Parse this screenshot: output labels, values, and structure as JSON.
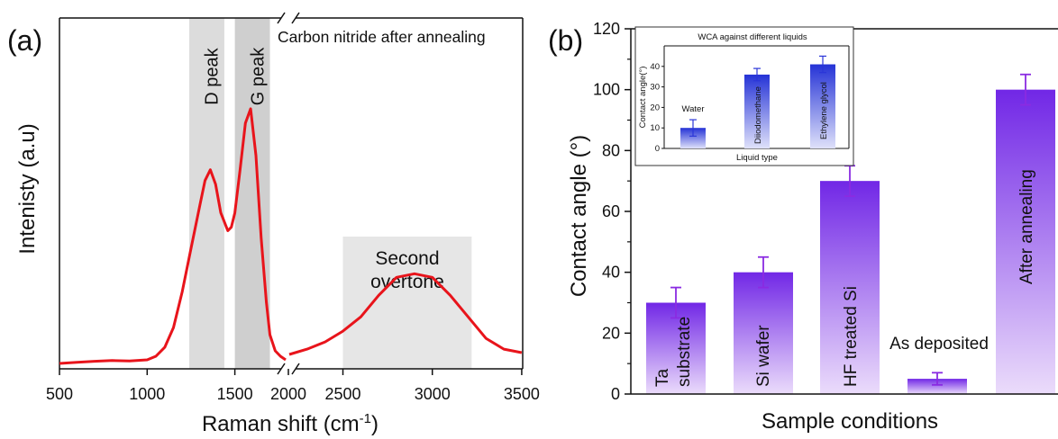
{
  "chart_data": [
    {
      "panel": "(a)",
      "type": "line",
      "title": "",
      "xlabel": "Raman shift (cm",
      "xlabel_sup": "-1",
      "xlabel_end": ")",
      "ylabel": "Intenisty (a.u)",
      "annotation": "Carbon nitride after annealing",
      "xlim": [
        500,
        3500
      ],
      "x_break": [
        1800,
        2200
      ],
      "xticks": [
        "500",
        "1000",
        "1500",
        "2000",
        "2500",
        "3000",
        "3500"
      ],
      "xtick_values": [
        500,
        1000,
        1500,
        2000,
        2500,
        3000,
        3500
      ],
      "regions": [
        {
          "label": "D peak",
          "from": 1240,
          "to": 1440
        },
        {
          "label": "G peak",
          "from": 1500,
          "to": 1700
        },
        {
          "label": "Second overtone",
          "from": 2500,
          "to": 3220
        }
      ],
      "series": [
        {
          "color": "#e8141b",
          "x": [
            500,
            600,
            700,
            800,
            900,
            1000,
            1050,
            1100,
            1150,
            1200,
            1250,
            1300,
            1330,
            1360,
            1390,
            1420,
            1460,
            1480,
            1500,
            1530,
            1560,
            1590,
            1620,
            1650,
            1680,
            1700,
            1730,
            1760,
            1790,
            2200,
            2300,
            2400,
            2500,
            2600,
            2700,
            2800,
            2900,
            3000,
            3100,
            3200,
            3300,
            3400,
            3500
          ],
          "y": [
            0,
            0.3,
            0.6,
            0.8,
            0.7,
            1.0,
            2.0,
            4.5,
            10,
            20,
            32,
            44,
            51,
            54,
            50,
            42,
            37,
            38,
            42,
            54,
            67,
            71,
            58,
            35,
            17,
            8,
            3.5,
            2,
            1,
            2.5,
            4,
            6,
            9,
            13,
            19,
            24,
            25,
            24,
            19,
            13,
            7,
            4,
            3
          ]
        }
      ]
    },
    {
      "panel": "(b)",
      "type": "bar",
      "title": "",
      "xlabel": "Sample conditions",
      "ylabel": "Contact angle (°)",
      "ylim": [
        0,
        120
      ],
      "yticks": [
        "0",
        "20",
        "40",
        "60",
        "80",
        "100",
        "120"
      ],
      "ytick_values": [
        0,
        20,
        40,
        60,
        80,
        100,
        120
      ],
      "categories": [
        "Ta substrate",
        "Si wafer",
        "HF treated Si",
        "As deposited",
        "After annealing"
      ],
      "bar_text": [
        [
          "Ta",
          "substrate"
        ],
        [
          "Si wafer"
        ],
        [
          "HF treated Si"
        ],
        [
          "As deposited"
        ],
        [
          "After annealing"
        ]
      ],
      "values": [
        30,
        40,
        70,
        5,
        100
      ],
      "errors": [
        5,
        5,
        5,
        2,
        5
      ],
      "bar_color": "#7a2fe8"
    },
    {
      "panel": "inset",
      "type": "bar",
      "title": "WCA against different liquids",
      "xlabel": "Liquid type",
      "ylabel": "Contact angle(°)",
      "ylim": [
        0,
        50
      ],
      "yticks": [
        "0",
        "10",
        "20",
        "30",
        "40"
      ],
      "ytick_values": [
        0,
        10,
        20,
        30,
        40
      ],
      "categories": [
        "Water",
        "Diiodomethane",
        "Ethylene glycol"
      ],
      "values": [
        10,
        36,
        41
      ],
      "errors": [
        4,
        3,
        4
      ],
      "bar_color": "#2b36d8"
    }
  ]
}
